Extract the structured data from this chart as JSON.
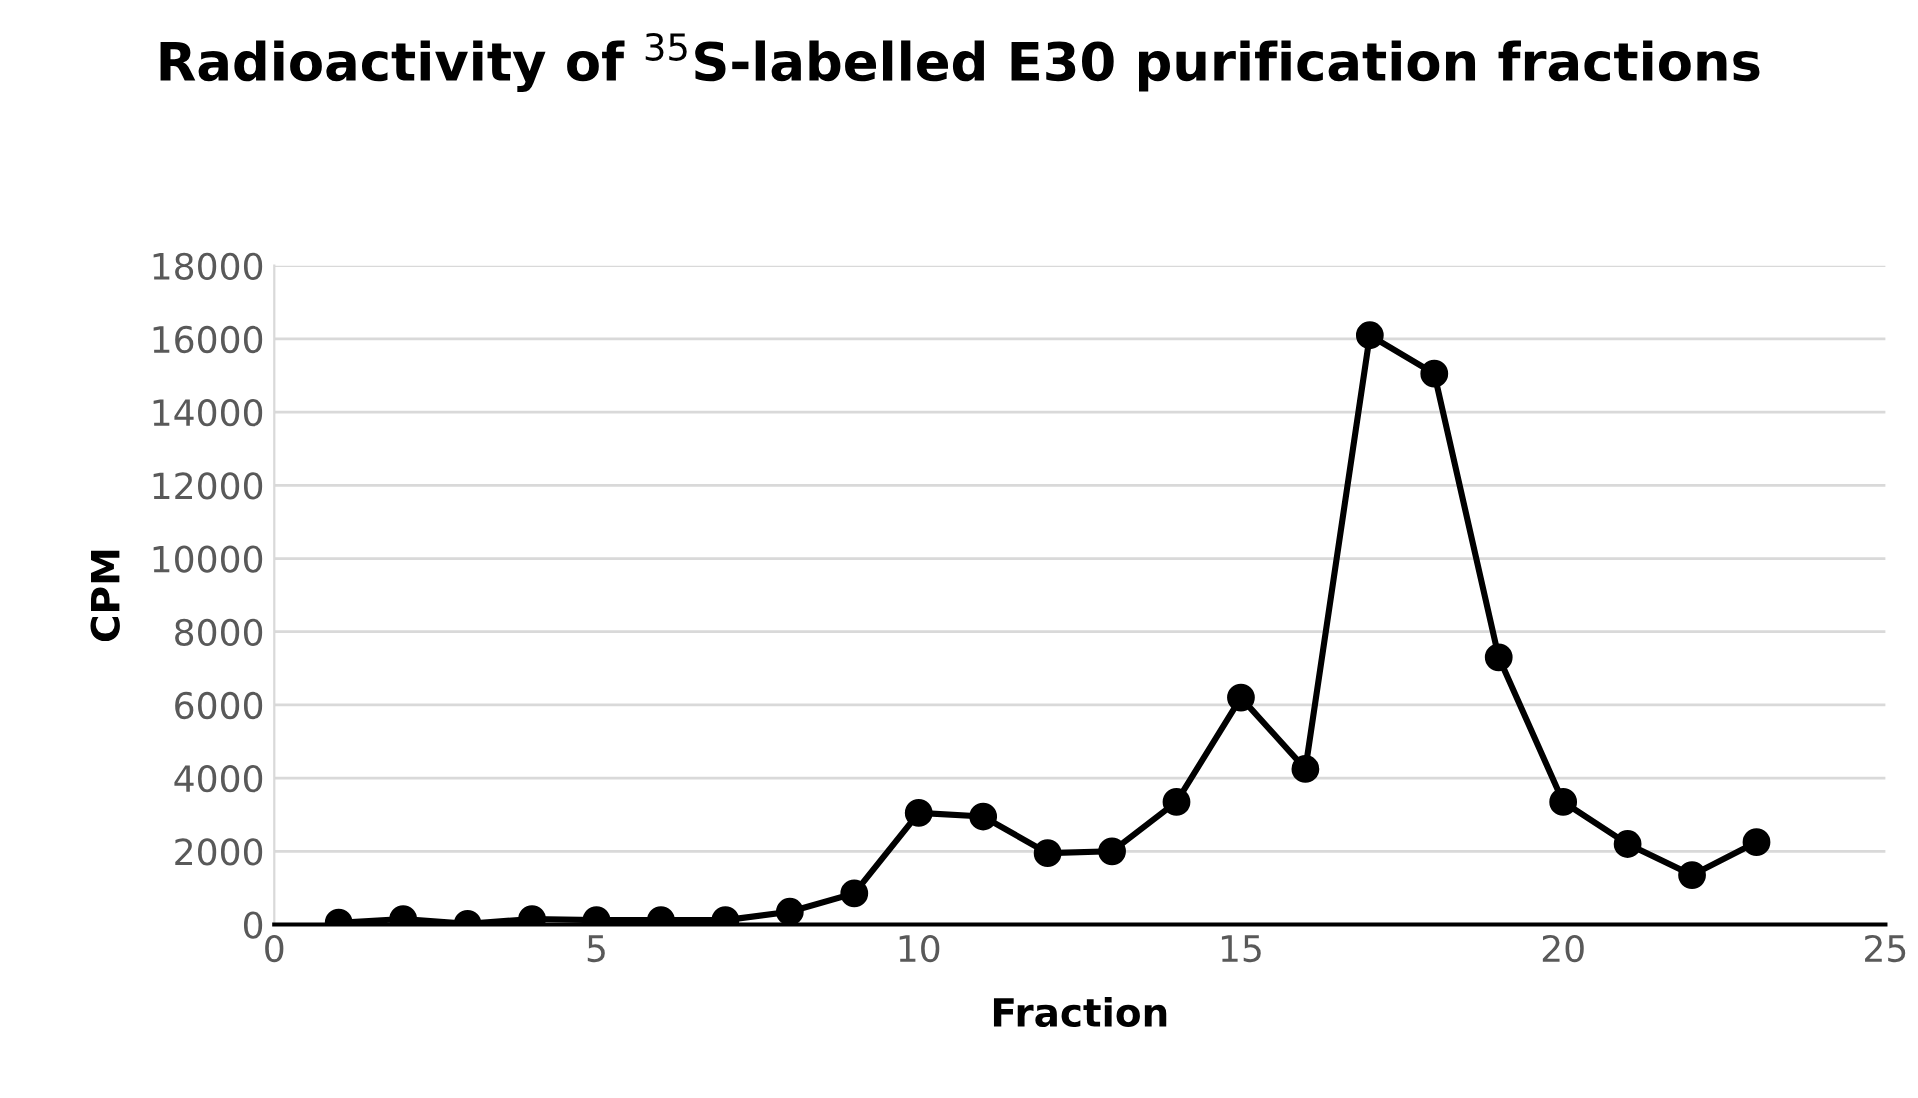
{
  "chart_data": {
    "type": "line",
    "title": "Radioactivity of $^{35}$S-labelled E30 purification fractions",
    "xlabel": "Fraction",
    "ylabel": "CPM",
    "x": [
      1,
      2,
      3,
      4,
      5,
      6,
      7,
      8,
      9,
      10,
      11,
      12,
      13,
      14,
      15,
      16,
      17,
      18,
      19,
      20,
      21,
      22,
      23
    ],
    "series": [
      {
        "color": "#000000",
        "values": [
          50,
          150,
          20,
          150,
          120,
          120,
          120,
          350,
          850,
          3050,
          2950,
          1950,
          2000,
          3350,
          6200,
          4250,
          16100,
          15050,
          7300,
          3350,
          2200,
          1350,
          2250
        ]
      }
    ],
    "xlim": [
      0,
      25
    ],
    "xticks": [
      0,
      5,
      10,
      15,
      20,
      25
    ],
    "ylim": [
      0,
      18000
    ],
    "yticks": [
      0,
      2000,
      4000,
      6000,
      8000,
      10000,
      12000,
      14000,
      16000,
      18000
    ],
    "grid": "y",
    "marker": "circle",
    "line_style": "solid"
  }
}
